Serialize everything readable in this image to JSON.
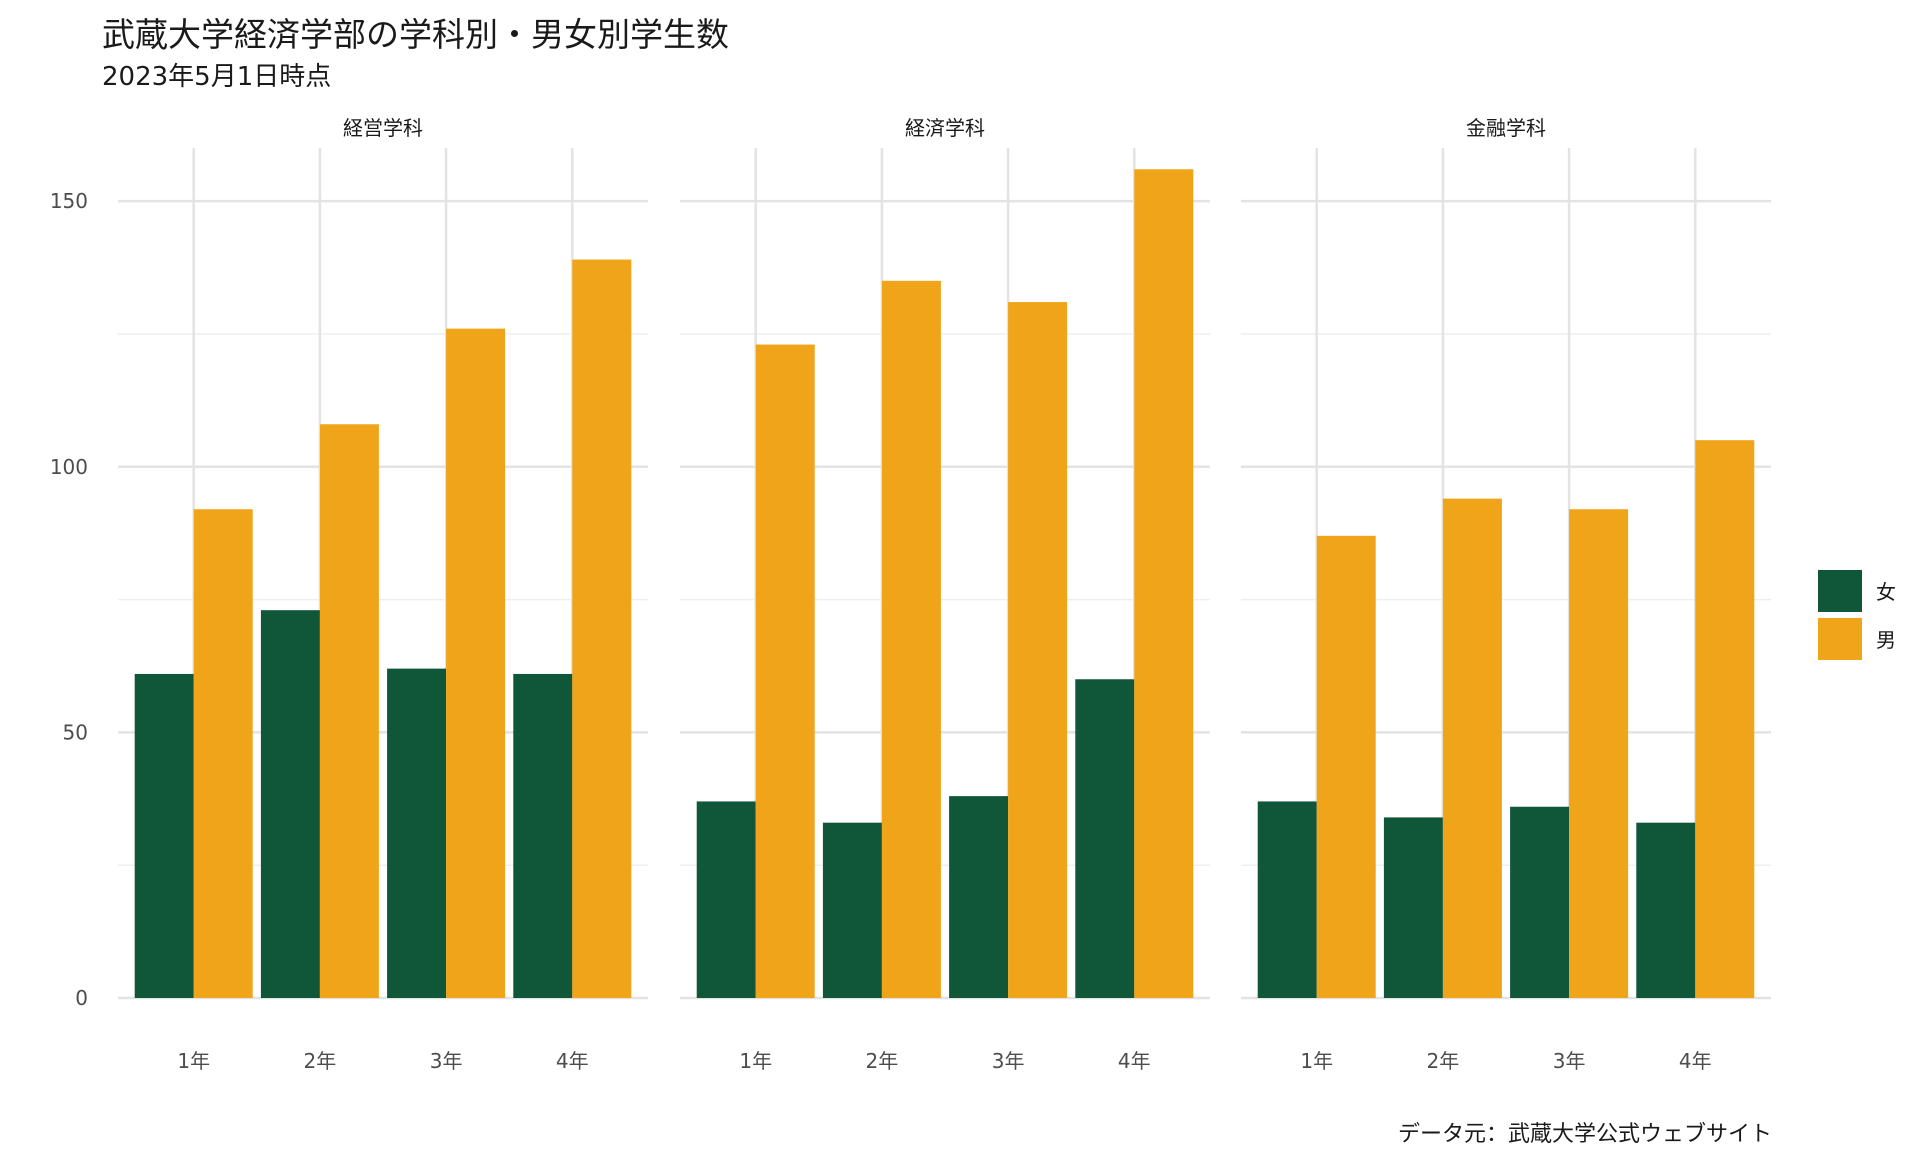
{
  "title": "武蔵大学経済学部の学科別・男女別学生数",
  "subtitle": "2023年5月1日時点",
  "caption": "データ元：武蔵大学公式ウェブサイト",
  "colors": {
    "女": "#10573a",
    "男": "#f0a41a",
    "grid_major": "#e3e3e3",
    "grid_minor": "#efefef"
  },
  "chart_data": {
    "type": "bar",
    "facets": [
      "経営学科",
      "経済学科",
      "金融学科"
    ],
    "categories": [
      "1年",
      "2年",
      "3年",
      "4年"
    ],
    "legend": {
      "position": "right",
      "entries": [
        "女",
        "男"
      ]
    },
    "ylim": [
      0,
      160
    ],
    "yticks": [
      0,
      50,
      100,
      150
    ],
    "grid": true,
    "series": [
      {
        "name": "女",
        "values": {
          "経営学科": [
            61,
            73,
            62,
            61
          ],
          "経済学科": [
            37,
            33,
            38,
            60
          ],
          "金融学科": [
            37,
            34,
            36,
            33
          ]
        }
      },
      {
        "name": "男",
        "values": {
          "経営学科": [
            92,
            108,
            126,
            139
          ],
          "経済学科": [
            123,
            135,
            131,
            156
          ],
          "金融学科": [
            87,
            94,
            92,
            105
          ]
        }
      }
    ]
  }
}
